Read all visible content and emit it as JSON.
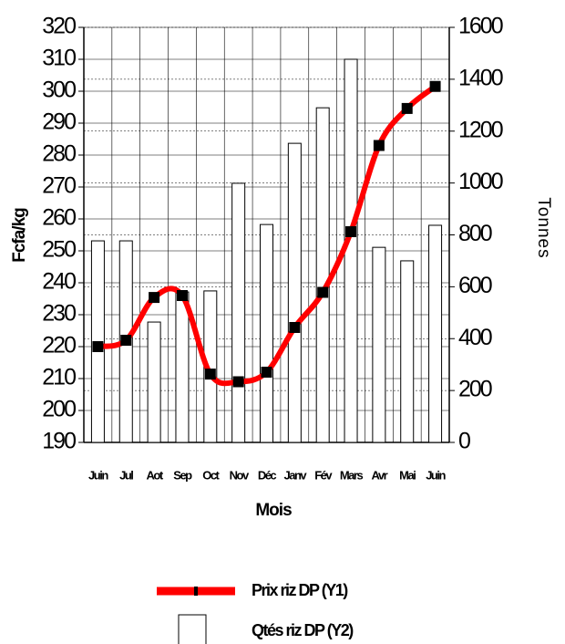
{
  "chart_data": {
    "type": "bar_line",
    "x_label": "Mois",
    "y_label": "Fcfa/kg",
    "y2_label": "Tonnes",
    "categories": [
      "Juin",
      "Jul",
      "Aot",
      "Sep",
      "Oct",
      "Nov",
      "Déc",
      "Janv",
      "Fév",
      "Mars",
      "Avr",
      "Mai",
      "Juin"
    ],
    "series": [
      {
        "name": "Prix riz DP (Y1)",
        "type": "line",
        "color": "#ff0000",
        "marker_color": "#000000",
        "values": [
          220,
          222,
          235.4,
          236,
          211.4,
          209,
          212,
          226,
          237,
          256,
          283,
          294.6,
          301.5
        ]
      },
      {
        "name": "Qtés riz DP (Y2)",
        "type": "bar",
        "axis": "y2",
        "color": "#ffffff",
        "edge_color": "#000000",
        "values": [
          777,
          777,
          464,
          580,
          584,
          999,
          840,
          1153,
          1290,
          1477,
          752,
          700,
          837
        ]
      }
    ],
    "ylim": [
      190,
      320
    ],
    "yticks": [
      190,
      200,
      210,
      220,
      230,
      240,
      250,
      260,
      270,
      280,
      290,
      300,
      310,
      320
    ],
    "y2lim": [
      0,
      1600
    ],
    "y2ticks": [
      0,
      200,
      400,
      600,
      800,
      1000,
      1200,
      1400,
      1600
    ],
    "grid": true,
    "legend": "bottom"
  }
}
